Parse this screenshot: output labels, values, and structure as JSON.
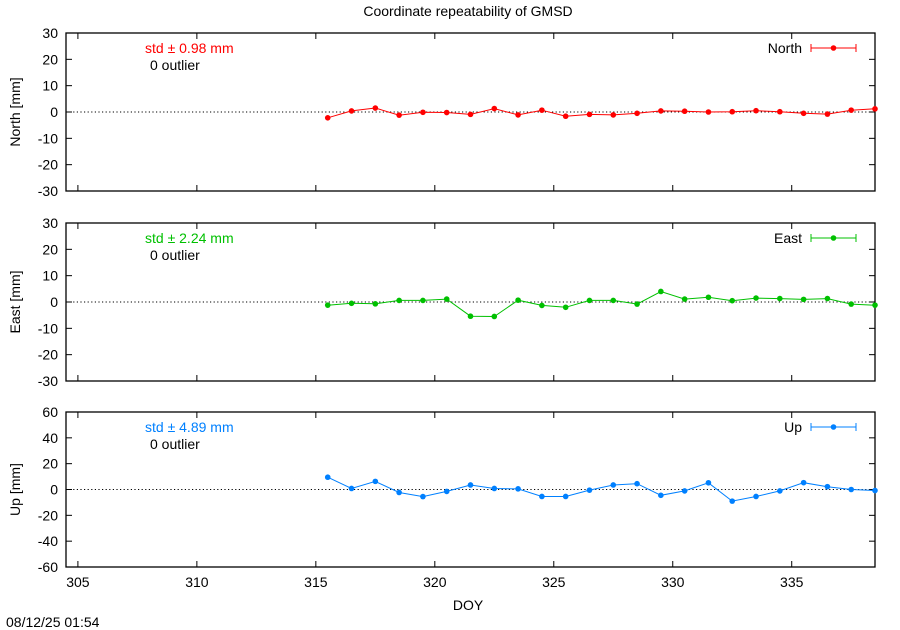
{
  "chart_data": {
    "type": "line",
    "title": "Coordinate repeatability of GMSD",
    "xlabel": "DOY",
    "xlim": [
      304.5,
      338.5
    ],
    "xticks": [
      305,
      310,
      315,
      320,
      325,
      330,
      335
    ],
    "x": [
      315.5,
      316.5,
      317.5,
      318.5,
      319.5,
      320.5,
      321.5,
      322.5,
      323.5,
      324.5,
      325.5,
      326.5,
      327.5,
      328.5,
      329.5,
      330.5,
      331.5,
      332.5,
      333.5,
      334.5,
      335.5,
      336.5,
      337.5,
      338.5
    ],
    "panels": [
      {
        "name": "North",
        "ylabel": "North [mm]",
        "ylim": [
          -30,
          30
        ],
        "yticks": [
          -30,
          -20,
          -10,
          0,
          10,
          20,
          30
        ],
        "color": "#ff0000",
        "std_label": "std ± 0.98 mm",
        "outlier_label": "0 outlier",
        "legend": "North",
        "values": [
          -2.2,
          0.4,
          1.5,
          -1.2,
          -0.1,
          -0.2,
          -0.9,
          1.3,
          -1.1,
          0.7,
          -1.6,
          -0.9,
          -1.1,
          -0.5,
          0.4,
          0.3,
          0.0,
          0.1,
          0.5,
          0.1,
          -0.5,
          -0.8,
          0.7,
          1.2
        ]
      },
      {
        "name": "East",
        "ylabel": "East [mm]",
        "ylim": [
          -30,
          30
        ],
        "yticks": [
          -30,
          -20,
          -10,
          0,
          10,
          20,
          30
        ],
        "color": "#00c000",
        "std_label": "std ± 2.24 mm",
        "outlier_label": "0 outlier",
        "legend": "East",
        "values": [
          -1.2,
          -0.5,
          -0.7,
          0.6,
          0.6,
          1.1,
          -5.4,
          -5.5,
          0.7,
          -1.3,
          -2.0,
          0.6,
          0.6,
          -0.8,
          4.0,
          1.1,
          1.8,
          0.5,
          1.5,
          1.3,
          1.0,
          1.3,
          -0.8,
          -1.2
        ]
      },
      {
        "name": "Up",
        "ylabel": "Up [mm]",
        "ylim": [
          -60,
          60
        ],
        "yticks": [
          -60,
          -40,
          -20,
          0,
          20,
          40,
          60
        ],
        "color": "#0080ff",
        "std_label": "std ± 4.89 mm",
        "outlier_label": "0 outlier",
        "legend": "Up",
        "values": [
          9.5,
          0.8,
          6.3,
          -2.3,
          -5.5,
          -1.5,
          3.5,
          0.8,
          0.5,
          -5.4,
          -5.4,
          -0.5,
          3.5,
          4.5,
          -4.5,
          -1.1,
          5.2,
          -9.0,
          -5.4,
          -1.1,
          5.3,
          2.2,
          0.0,
          -0.8
        ]
      }
    ]
  },
  "timestamp": "08/12/25 01:54"
}
